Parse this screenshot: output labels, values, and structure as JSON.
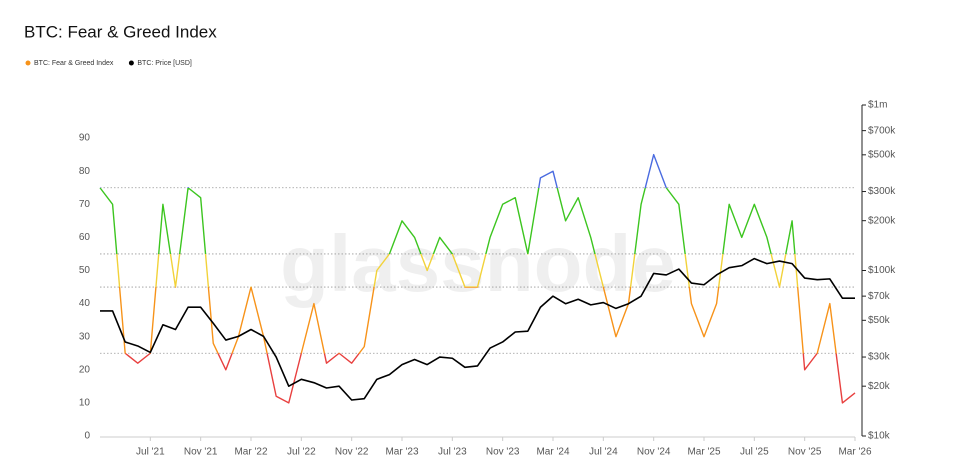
{
  "chart_data": {
    "type": "line",
    "title": "BTC: Fear & Greed Index",
    "watermark": "glassnode",
    "categories": [
      null,
      null,
      null,
      null,
      "Jul '21",
      null,
      null,
      null,
      "Nov '21",
      null,
      null,
      null,
      "Mar '22",
      null,
      null,
      null,
      "Jul '22",
      null,
      null,
      null,
      "Nov '22",
      null,
      null,
      null,
      "Mar '23",
      null,
      null,
      null,
      "Jul '23",
      null,
      null,
      null,
      "Nov '23",
      null,
      null,
      null,
      "Mar '24",
      null,
      null,
      null,
      "Jul '24",
      null,
      null,
      null,
      "Nov '24",
      null,
      null,
      null,
      "Mar '25",
      null,
      null,
      null,
      "Jul '25",
      null,
      null,
      null,
      "Nov '25",
      null,
      null,
      null,
      "Mar '26"
    ],
    "series": [
      {
        "name": "BTC: Fear & Greed Index",
        "color": "#f7931a",
        "axis": "y",
        "values": [
          75,
          70,
          25,
          22,
          25,
          70,
          45,
          75,
          72,
          28,
          20,
          30,
          45,
          30,
          12,
          10,
          25,
          40,
          22,
          25,
          22,
          27,
          50,
          55,
          65,
          60,
          50,
          60,
          55,
          45,
          45,
          60,
          70,
          72,
          55,
          78,
          80,
          65,
          72,
          60,
          45,
          30,
          40,
          70,
          85,
          75,
          70,
          40,
          30,
          40,
          70,
          60,
          70,
          60,
          45,
          65,
          20,
          25,
          40,
          10,
          13
        ]
      },
      {
        "name": "BTC: Price [USD]",
        "color": "#000000",
        "axis": "y2",
        "values": [
          57000,
          57000,
          37000,
          35000,
          32000,
          47000,
          44000,
          60000,
          60000,
          48000,
          38000,
          40000,
          44000,
          40000,
          30000,
          20000,
          22000,
          21000,
          19500,
          20000,
          16500,
          16800,
          22000,
          23500,
          27000,
          29000,
          27000,
          30000,
          29500,
          26000,
          26500,
          34000,
          37000,
          42500,
          43000,
          60000,
          70000,
          63000,
          67000,
          62000,
          64000,
          59000,
          63000,
          70000,
          96000,
          94000,
          102000,
          84000,
          82000,
          94000,
          104000,
          107000,
          118000,
          110000,
          114000,
          110000,
          90000,
          88000,
          89000,
          68000,
          68000
        ]
      }
    ],
    "zones": [
      {
        "to": 25,
        "color": "#e8403f"
      },
      {
        "to": 45,
        "color": "#f7931a"
      },
      {
        "to": 55,
        "color": "#f2d23a"
      },
      {
        "to": 75,
        "color": "#3cc51f"
      },
      {
        "to": 100,
        "color": "#4a6be0"
      }
    ],
    "ylim": [
      0,
      100
    ],
    "yticks": [
      0,
      10,
      20,
      30,
      40,
      50,
      60,
      70,
      80,
      90
    ],
    "y2lim": [
      10000,
      1000000
    ],
    "y2log": true,
    "y2ticks": [
      {
        "value": 10000,
        "label": "$10k"
      },
      {
        "value": 20000,
        "label": "$20k"
      },
      {
        "value": 30000,
        "label": "$30k"
      },
      {
        "value": 50000,
        "label": "$50k"
      },
      {
        "value": 70000,
        "label": "$70k"
      },
      {
        "value": 100000,
        "label": "$100k"
      },
      {
        "value": 200000,
        "label": "$200k"
      },
      {
        "value": 300000,
        "label": "$300k"
      },
      {
        "value": 500000,
        "label": "$500k"
      },
      {
        "value": 700000,
        "label": "$700k"
      },
      {
        "value": 1000000,
        "label": "$1m"
      }
    ]
  }
}
